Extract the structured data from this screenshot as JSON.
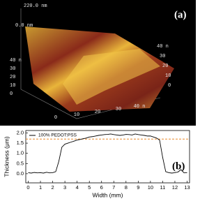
{
  "afm_image": {
    "z_max": "220.0 nm",
    "z_min": "0.0 nm",
    "panel_label": "(a)",
    "left_axis": [
      "40 n",
      "30",
      "20",
      "10",
      "0"
    ],
    "right_axis": [
      "40 n",
      "30",
      "20",
      "10",
      "0"
    ],
    "bottom_axis": [
      "0",
      "10",
      "20",
      "30",
      "40 n"
    ]
  },
  "chart_data": {
    "type": "line",
    "panel_label": "(b)",
    "x_label": "Width (mm)",
    "y_label": "Thickness (μm)",
    "x": [
      0,
      0.25,
      0.5,
      0.75,
      1,
      1.25,
      1.5,
      1.75,
      2,
      2.25,
      2.5,
      2.75,
      3,
      3.25,
      3.5,
      3.75,
      4,
      4.25,
      4.5,
      4.75,
      5,
      5.25,
      5.5,
      5.75,
      6,
      6.25,
      6.5,
      6.75,
      7,
      7.25,
      7.5,
      7.75,
      8,
      8.25,
      8.5,
      8.75,
      9,
      9.25,
      9.5,
      9.75,
      10,
      10.25,
      10.5,
      10.75,
      11,
      11.25,
      11.5,
      11.75,
      12,
      12.25,
      12.5,
      12.75,
      13
    ],
    "series": [
      {
        "name": "100% PEDOT:PSS",
        "color": "#000000",
        "values": [
          0.05,
          0.03,
          0.06,
          0.04,
          0.05,
          0.03,
          0.07,
          0.04,
          0.05,
          0.1,
          0.6,
          1.3,
          1.45,
          1.5,
          1.55,
          1.6,
          1.65,
          1.68,
          1.72,
          1.75,
          1.8,
          1.82,
          1.85,
          1.88,
          1.9,
          1.92,
          1.93,
          1.95,
          1.92,
          1.9,
          1.88,
          1.9,
          1.93,
          1.92,
          1.9,
          1.95,
          1.92,
          1.9,
          1.88,
          1.85,
          1.85,
          1.8,
          1.75,
          1.65,
          0.8,
          0.1,
          0.05,
          0.03,
          0.05,
          0.08,
          0.2,
          0.04,
          0.05
        ]
      }
    ],
    "reference_line": {
      "value": 1.7,
      "color": "#e8892a",
      "style": "dashed"
    },
    "xlim": [
      -0.2,
      13.2
    ],
    "ylim": [
      -0.45,
      2.12
    ],
    "xticks": [
      0,
      1,
      2,
      3,
      4,
      5,
      6,
      7,
      8,
      9,
      10,
      11,
      12,
      13
    ],
    "yticks": [
      {
        "value": 0,
        "label": "0.0"
      },
      0.5,
      {
        "value": 1,
        "label": "1.0"
      },
      1.5,
      {
        "value": 2,
        "label": "2.0"
      }
    ]
  }
}
